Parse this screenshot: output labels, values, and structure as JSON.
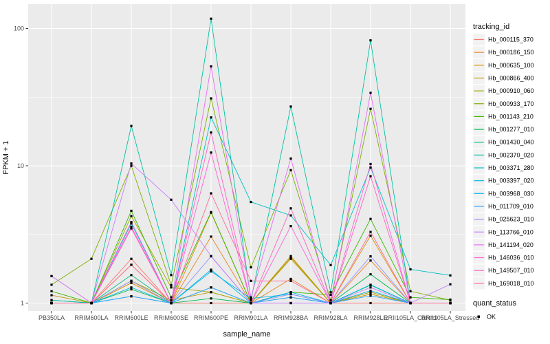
{
  "figure": {
    "background": "#FFFFFF",
    "panel_background": "#EBEBEB",
    "grid_color": "#FFFFFF",
    "tick_color": "#333333",
    "tick_label_color": "#4D4D4D",
    "point_color": "#000000"
  },
  "chart_data": {
    "type": "line",
    "title": "",
    "xlabel": "sample_name",
    "ylabel": "FPKM + 1",
    "y_scale": "log10",
    "y_ticks": [
      1,
      10,
      100
    ],
    "y_tick_labels": [
      "1",
      "10",
      "100"
    ],
    "y_minor_ticks": [
      3.1623,
      31.623
    ],
    "ylim": [
      0.95,
      150
    ],
    "grid": true,
    "legend_position": "right",
    "legend_title": "tracking_id",
    "legend2_title": "quant_status",
    "legend2_item": "OK",
    "x_categories": [
      "PB350LA",
      "RRIM600LA",
      "RRIM600LE",
      "RRIM600SE",
      "RRIM600PE",
      "RRIM901LA",
      "RRIM928BA",
      "RRIM928LA",
      "RRIM928LE",
      "RRII105LA_Control",
      "RRII105LA_Stressed"
    ],
    "series": [
      {
        "name": "Hb_000115_370",
        "color": "#F8766D",
        "values": [
          1.57,
          1.0,
          2.1,
          1.0,
          1.0,
          1.0,
          1.0,
          1.0,
          1.0,
          1.0,
          1.0
        ]
      },
      {
        "name": "Hb_000186_150",
        "color": "#E88526",
        "values": [
          1.0,
          1.0,
          1.9,
          1.0,
          3.05,
          1.0,
          1.5,
          1.0,
          2.04,
          1.0,
          1.0
        ]
      },
      {
        "name": "Hb_000635_100",
        "color": "#D89000",
        "values": [
          1.0,
          1.0,
          1.4,
          1.0,
          4.55,
          1.0,
          2.2,
          1.0,
          3.1,
          1.0,
          1.0
        ]
      },
      {
        "name": "Hb_000866_400",
        "color": "#C09B00",
        "values": [
          1.14,
          1.0,
          1.45,
          1.05,
          1.2,
          1.0,
          2.1,
          1.0,
          1.16,
          1.0,
          1.0
        ]
      },
      {
        "name": "Hb_000910_060",
        "color": "#A3A500",
        "values": [
          1.0,
          1.0,
          4.3,
          1.3,
          1.2,
          1.0,
          2.15,
          1.0,
          1.2,
          1.0,
          1.0
        ]
      },
      {
        "name": "Hb_000933_170",
        "color": "#7CAE00",
        "values": [
          1.36,
          2.1,
          10.0,
          1.35,
          31.0,
          1.82,
          9.3,
          1.05,
          26.0,
          1.22,
          1.05
        ]
      },
      {
        "name": "Hb_001143_210",
        "color": "#39B600",
        "values": [
          1.22,
          1.0,
          4.7,
          1.1,
          4.6,
          1.0,
          1.2,
          1.15,
          4.1,
          1.1,
          1.06
        ]
      },
      {
        "name": "Hb_001277_010",
        "color": "#00BB4E",
        "values": [
          1.0,
          1.0,
          1.26,
          1.0,
          1.08,
          1.0,
          1.0,
          1.0,
          1.62,
          1.0,
          1.0
        ]
      },
      {
        "name": "Hb_001430_040",
        "color": "#00BF7D",
        "values": [
          1.05,
          1.0,
          1.6,
          1.0,
          1.3,
          1.0,
          1.1,
          1.0,
          1.35,
          1.0,
          1.0
        ]
      },
      {
        "name": "Hb_002370_020",
        "color": "#00C1A3",
        "values": [
          1.05,
          1.0,
          19.5,
          1.6,
          118.0,
          1.05,
          27.0,
          1.2,
          82.0,
          1.0,
          1.0
        ]
      },
      {
        "name": "Hb_003371_280",
        "color": "#00BFC4",
        "values": [
          1.0,
          1.0,
          3.8,
          1.0,
          22.5,
          5.45,
          4.35,
          1.89,
          9.7,
          1.76,
          1.59
        ]
      },
      {
        "name": "Hb_003397_020",
        "color": "#00BAE0",
        "values": [
          1.0,
          1.0,
          1.3,
          1.0,
          1.75,
          1.0,
          1.2,
          1.0,
          1.36,
          1.0,
          1.0
        ]
      },
      {
        "name": "Hb_003968_030",
        "color": "#00B0F6",
        "values": [
          1.0,
          1.0,
          1.12,
          1.0,
          1.7,
          1.08,
          1.16,
          1.0,
          1.23,
          1.0,
          1.0
        ]
      },
      {
        "name": "Hb_011709_010",
        "color": "#35A2FF",
        "values": [
          1.0,
          1.0,
          1.12,
          1.0,
          1.3,
          1.0,
          1.1,
          1.0,
          1.13,
          1.0,
          1.0
        ]
      },
      {
        "name": "Hb_025623_010",
        "color": "#9590FF",
        "values": [
          1.0,
          1.0,
          1.45,
          1.0,
          2.19,
          1.0,
          1.16,
          1.0,
          2.19,
          1.0,
          1.0
        ]
      },
      {
        "name": "Hb_113766_010",
        "color": "#C77CFF",
        "values": [
          1.57,
          1.0,
          10.4,
          5.66,
          2.2,
          1.0,
          1.0,
          1.0,
          1.3,
          1.0,
          1.37
        ]
      },
      {
        "name": "Hb_141194_020",
        "color": "#E76BF3",
        "values": [
          1.0,
          1.0,
          3.9,
          1.0,
          53.0,
          1.1,
          11.3,
          1.0,
          34.0,
          1.0,
          1.0
        ]
      },
      {
        "name": "Hb_146036_010",
        "color": "#FA62DB",
        "values": [
          1.0,
          1.0,
          3.6,
          1.0,
          12.5,
          1.0,
          3.64,
          1.0,
          10.3,
          1.0,
          1.0
        ]
      },
      {
        "name": "Hb_149507_010",
        "color": "#FF62BC",
        "values": [
          1.0,
          1.0,
          3.5,
          1.0,
          17.5,
          1.0,
          4.9,
          1.0,
          8.4,
          1.0,
          1.0
        ]
      },
      {
        "name": "Hb_169018_010",
        "color": "#FF6A98",
        "values": [
          1.0,
          1.0,
          1.9,
          1.0,
          6.3,
          1.45,
          1.45,
          1.0,
          3.3,
          1.0,
          1.0
        ]
      }
    ]
  }
}
